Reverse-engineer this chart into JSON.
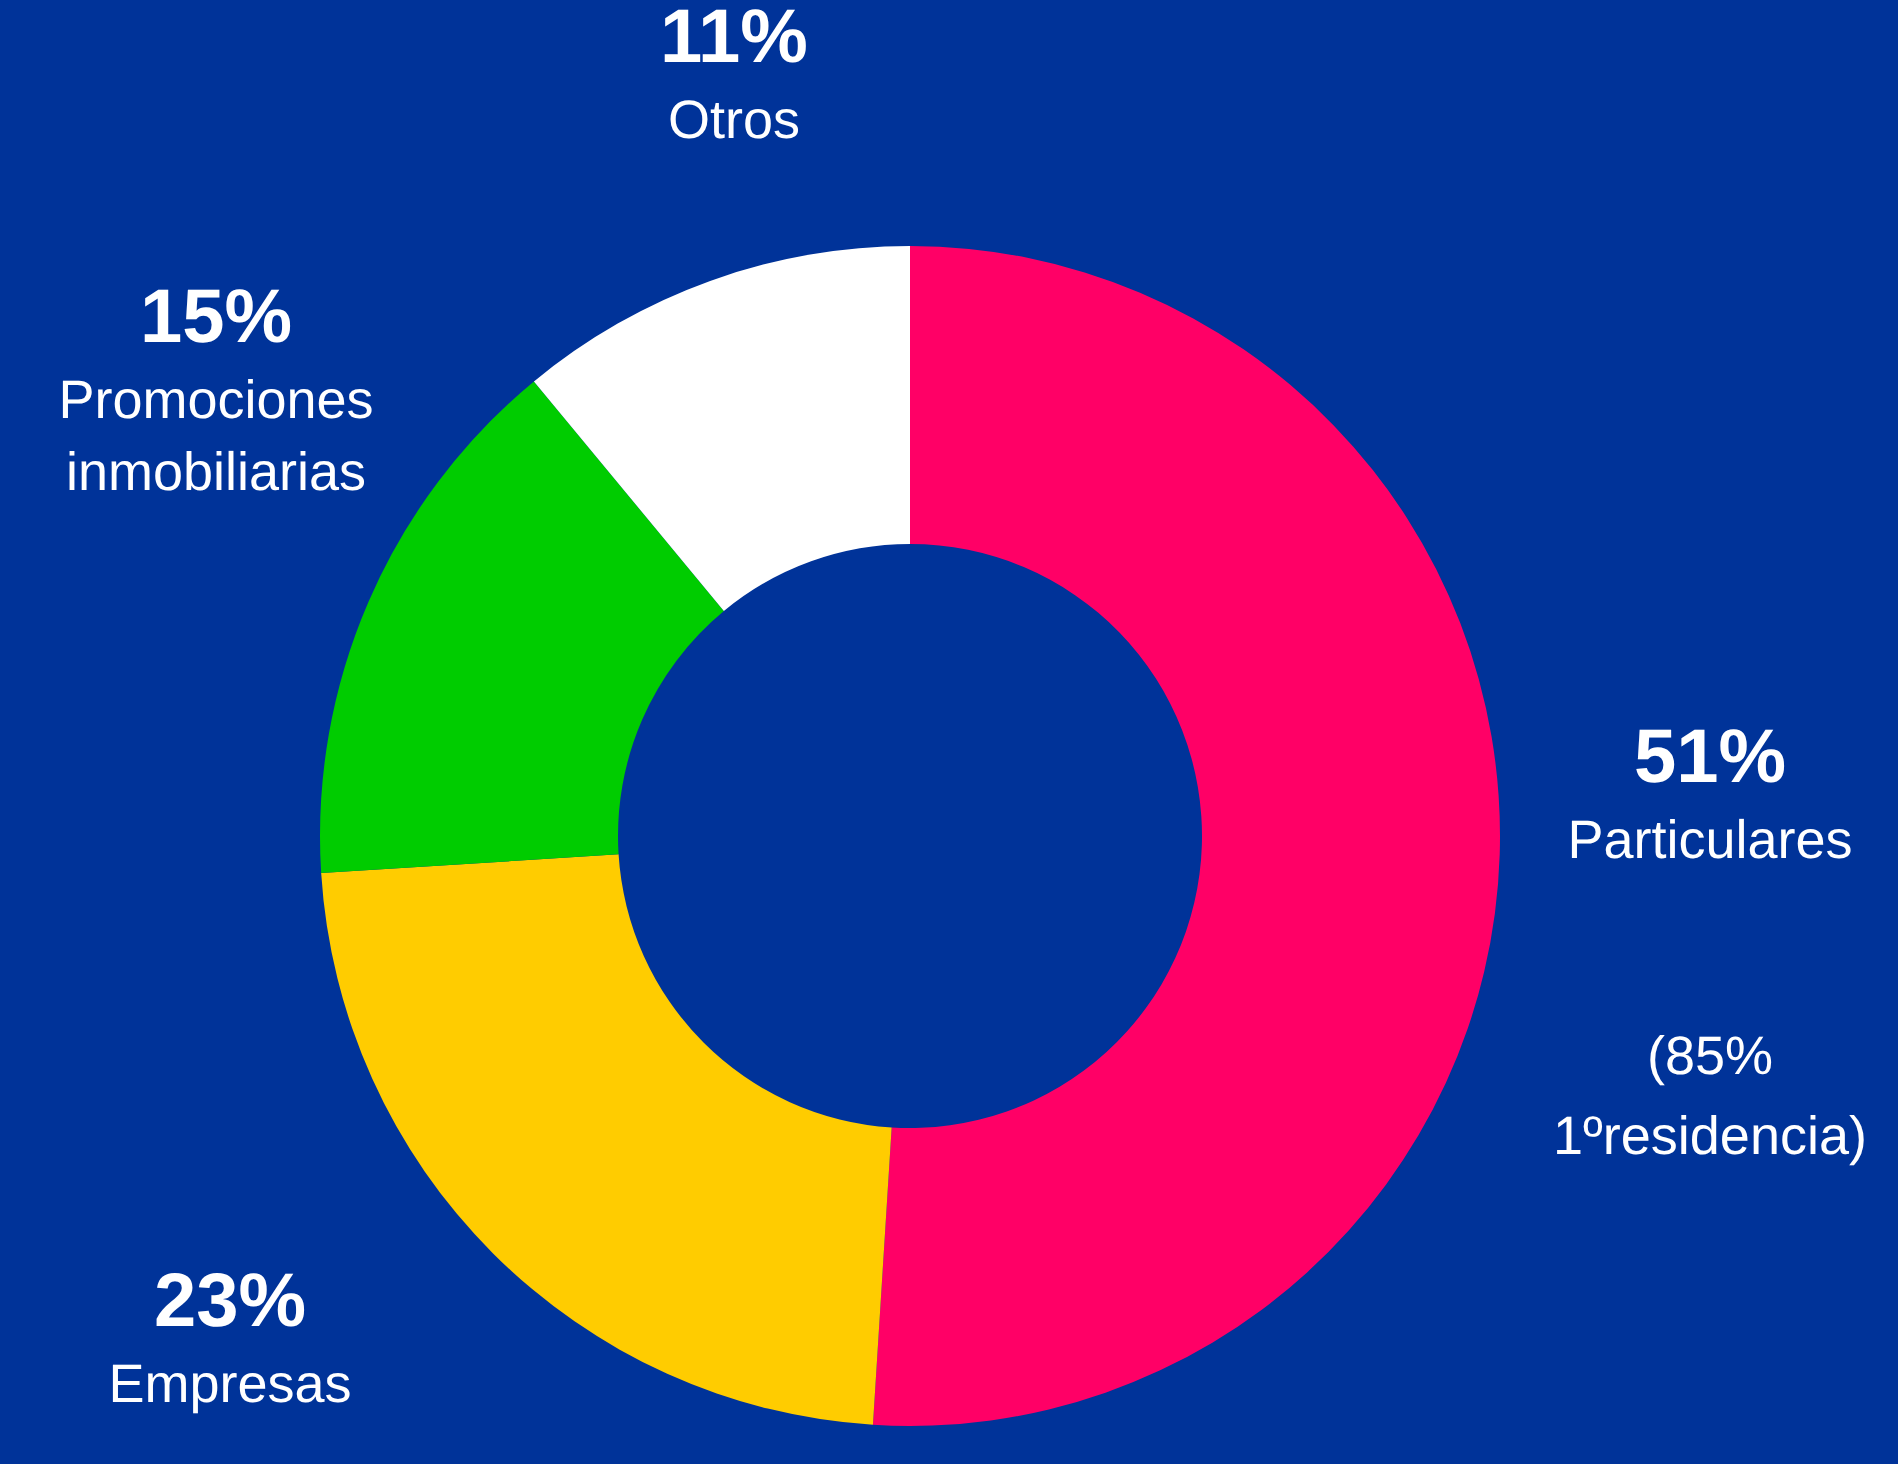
{
  "chart_data": {
    "type": "donut",
    "categories": [
      "Particulares",
      "Empresas",
      "Promociones inmobiliarias",
      "Otros"
    ],
    "values": [
      51,
      23,
      15,
      11
    ],
    "value_labels": [
      "51%",
      "23%",
      "15%",
      "11%"
    ],
    "colors": [
      "#ff0066",
      "#ffcc00",
      "#00cc00",
      "#ffffff"
    ],
    "annotations": [
      "(85% 1ºresidencia)"
    ],
    "legend": false
  }
}
